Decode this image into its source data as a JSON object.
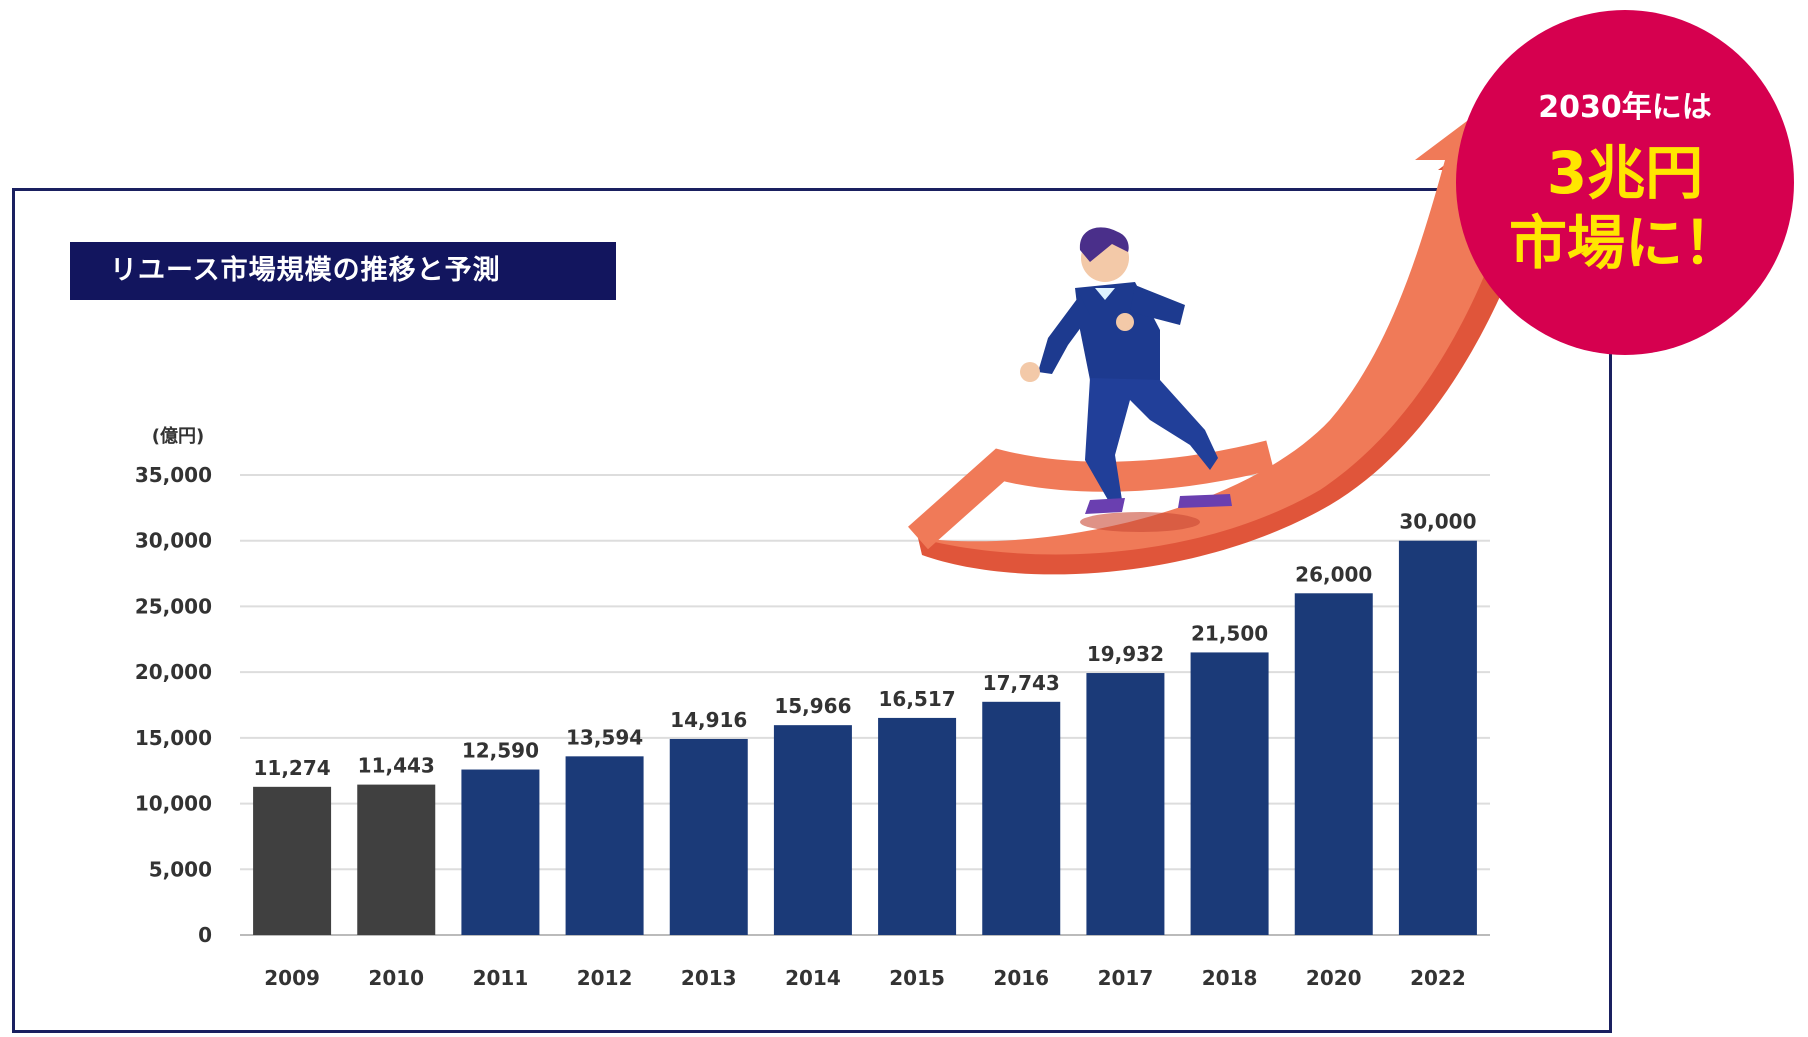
{
  "chart_data": {
    "type": "bar",
    "title": "リユース市場規模の推移と予測",
    "unit_label": "(億円)",
    "categories": [
      "2009",
      "2010",
      "2011",
      "2012",
      "2013",
      "2014",
      "2015",
      "2016",
      "2017",
      "2018",
      "2020",
      "2022"
    ],
    "values": [
      11274,
      11443,
      12590,
      13594,
      14916,
      15966,
      16517,
      17743,
      19932,
      21500,
      26000,
      30000
    ],
    "value_labels": [
      "11,274",
      "11,443",
      "12,590",
      "13,594",
      "14,916",
      "15,966",
      "16,517",
      "17,743",
      "19,932",
      "21,500",
      "26,000",
      "30,000"
    ],
    "bar_colors": [
      "#404040",
      "#404040",
      "#1b3a78",
      "#1b3a78",
      "#1b3a78",
      "#1b3a78",
      "#1b3a78",
      "#1b3a78",
      "#1b3a78",
      "#1b3a78",
      "#1b3a78",
      "#1b3a78"
    ],
    "yticks": [
      "0",
      "5,000",
      "10,000",
      "15,000",
      "20,000",
      "25,000",
      "30,000",
      "35,000"
    ],
    "ylim": [
      0,
      35000
    ],
    "grid": true
  },
  "badge": {
    "line1": "2030年には",
    "line2": "3兆円",
    "line3": "市場に！",
    "color": "#d6004f",
    "highlight_color": "#ffe600"
  },
  "colors": {
    "title_bg": "#12155e",
    "arrow": "#f07050",
    "frame": "#1a2060"
  }
}
